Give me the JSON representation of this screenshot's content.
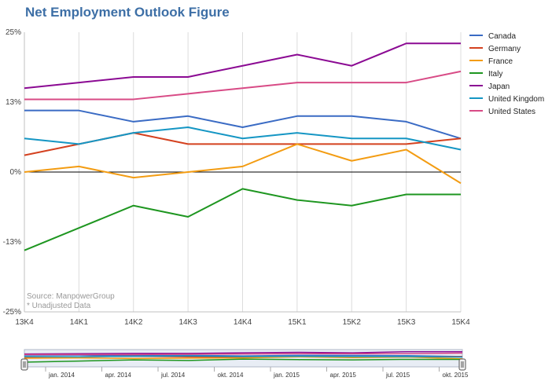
{
  "title": "Net Employment Outlook Figure",
  "notes": {
    "source": "Source: ManpowerGroup",
    "unadjusted": "* Unadjusted Data"
  },
  "navigator": {
    "labels": [
      "jan. 2014",
      "apr. 2014",
      "jul. 2014",
      "okt. 2014",
      "jan. 2015",
      "apr. 2015",
      "jul. 2015",
      "okt. 2015"
    ]
  },
  "chart_data": {
    "type": "line",
    "title": "Net Employment Outlook Figure",
    "x": [
      "13K4",
      "14K1",
      "14K2",
      "14K3",
      "14K4",
      "15K1",
      "15K2",
      "15K3",
      "15K4"
    ],
    "y_ticks": [
      "25%",
      "13%",
      "0%",
      "-13%",
      "-25%"
    ],
    "ylim": [
      -25,
      25
    ],
    "grid": "vertical",
    "legend": "top-right",
    "series": [
      {
        "name": "Canada",
        "color": "#3a6bc4",
        "values": [
          11,
          11,
          9,
          10,
          8,
          10,
          10,
          9,
          6
        ]
      },
      {
        "name": "Germany",
        "color": "#d4411f",
        "values": [
          3,
          5,
          7,
          5,
          5,
          5,
          5,
          5,
          6
        ]
      },
      {
        "name": "France",
        "color": "#f39c12",
        "values": [
          0,
          1,
          -1,
          0,
          1,
          5,
          2,
          4,
          -2
        ]
      },
      {
        "name": "Italy",
        "color": "#1e9620",
        "values": [
          -14,
          -10,
          -6,
          -8,
          -3,
          -5,
          -6,
          -4,
          -4
        ]
      },
      {
        "name": "Japan",
        "color": "#8b0a93",
        "values": [
          15,
          16,
          17,
          17,
          19,
          21,
          19,
          23,
          23
        ]
      },
      {
        "name": "United Kingdom",
        "color": "#1596c4",
        "values": [
          6,
          5,
          7,
          8,
          6,
          7,
          6,
          6,
          4
        ]
      },
      {
        "name": "United States",
        "color": "#d84b86",
        "values": [
          13,
          13,
          13,
          14,
          15,
          16,
          16,
          16,
          18
        ]
      }
    ]
  }
}
